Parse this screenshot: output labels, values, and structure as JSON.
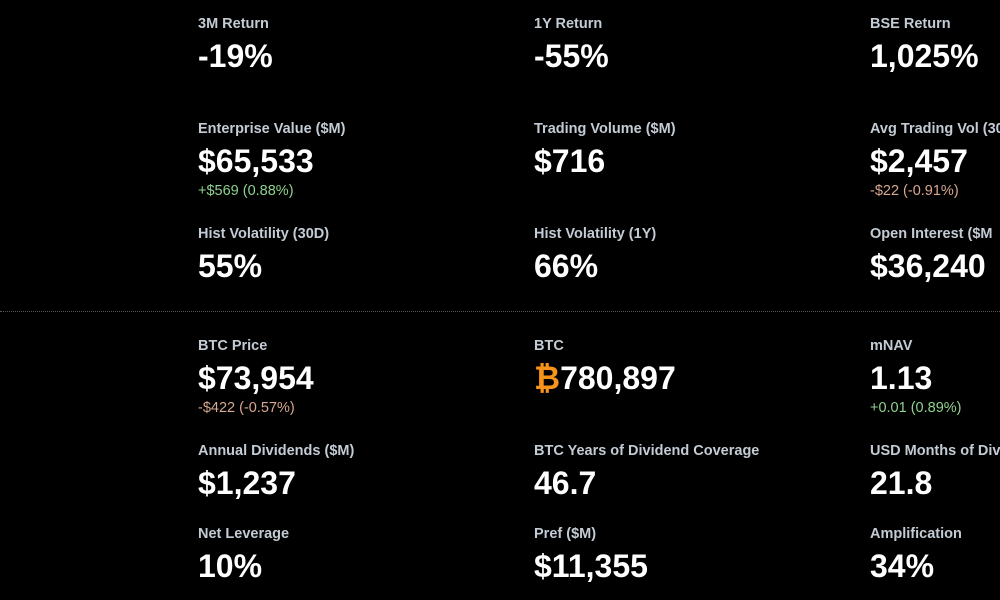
{
  "sections": [
    {
      "rows": [
        [
          {
            "label": "3M Return",
            "value": "-19%"
          },
          {
            "label": "1Y Return",
            "value": "-55%"
          },
          {
            "label": "BSE Return",
            "value": "1,025%"
          }
        ],
        [
          {
            "label": "Enterprise Value ($M)",
            "value": "$65,533",
            "change": "+$569 (0.88%)",
            "change_color": "#8fd18f"
          },
          {
            "label": "Trading Volume ($M)",
            "value": "$716"
          },
          {
            "label": "Avg Trading Vol (30",
            "value": "$2,457",
            "change": "-$22 (-0.91%)",
            "change_color": "#d8a890"
          }
        ],
        [
          {
            "label": "Hist Volatility (30D)",
            "value": "55%"
          },
          {
            "label": "Hist Volatility (1Y)",
            "value": "66%"
          },
          {
            "label": "Open Interest ($M",
            "value": "$36,240"
          }
        ]
      ]
    },
    {
      "rows": [
        [
          {
            "label": "BTC Price",
            "value": "$73,954",
            "change": "-$422 (-0.57%)",
            "change_color": "#d8a890"
          },
          {
            "label": "BTC",
            "symbol": "₿",
            "symbol_color": "#f7931a",
            "value": "780,897"
          },
          {
            "label": "mNAV",
            "value": "1.13",
            "change": "+0.01 (0.89%)",
            "change_color": "#8fd18f"
          }
        ],
        [
          {
            "label": "Annual Dividends ($M)",
            "value": "$1,237"
          },
          {
            "label": "BTC Years of Dividend Coverage",
            "value": "46.7"
          },
          {
            "label": "USD Months of Div",
            "value": "21.8"
          }
        ],
        [
          {
            "label": "Net Leverage",
            "value": "10%"
          },
          {
            "label": "Pref ($M)",
            "value": "$11,355"
          },
          {
            "label": "Amplification",
            "value": "34%"
          }
        ]
      ]
    }
  ]
}
